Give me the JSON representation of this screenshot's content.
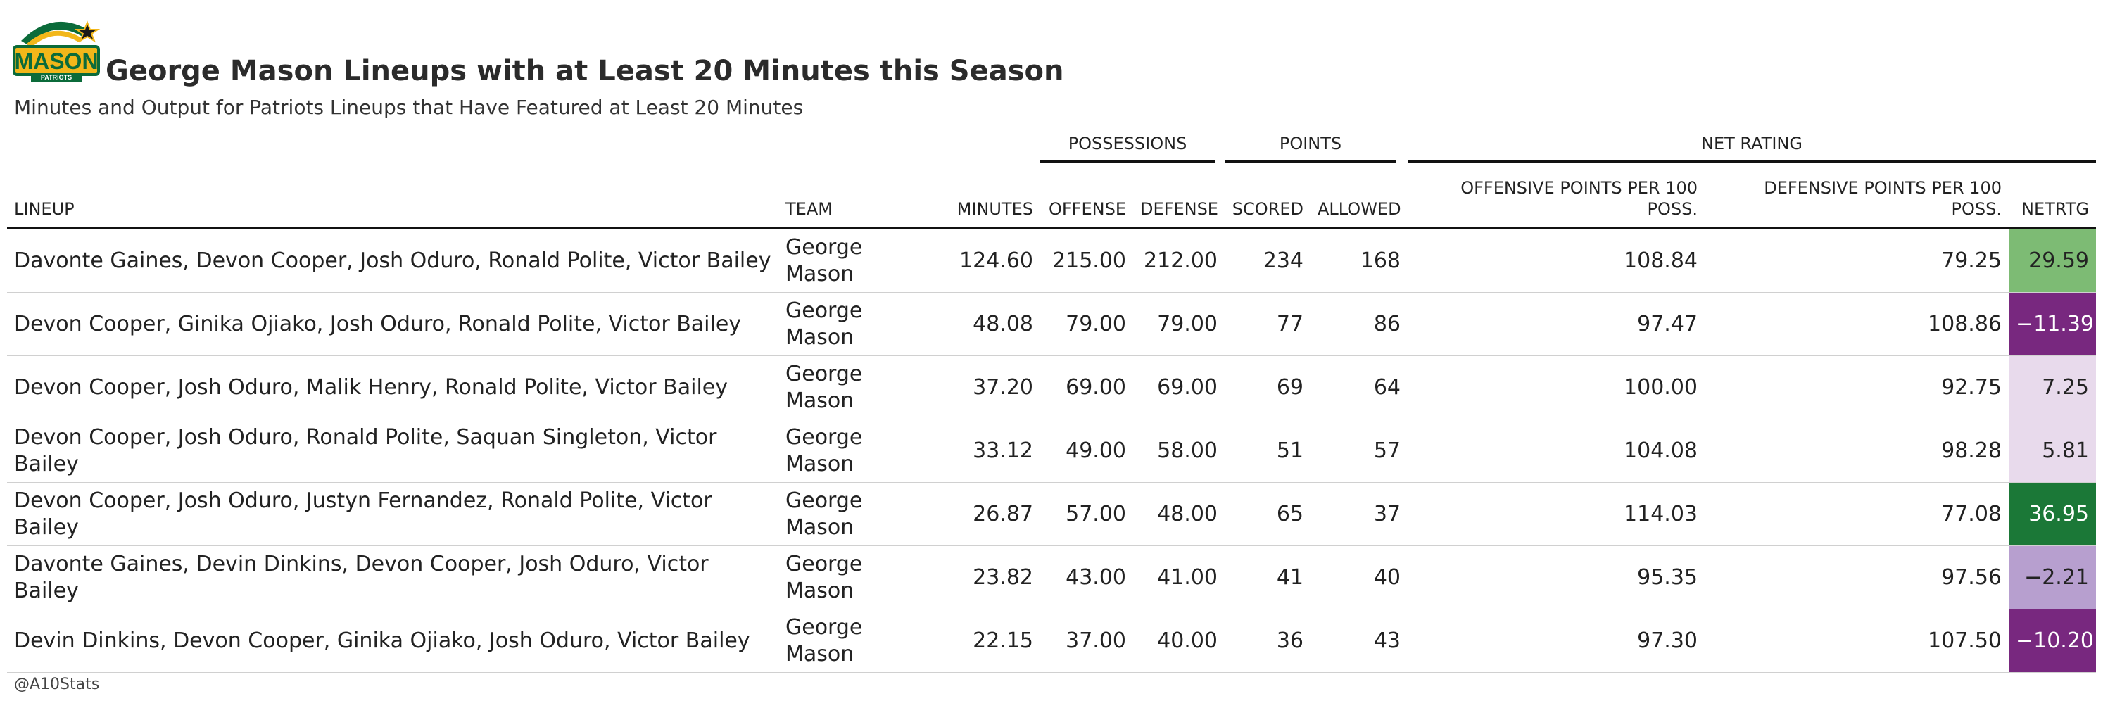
{
  "header": {
    "title": "George Mason Lineups with at Least 20 Minutes this Season",
    "subtitle": "Minutes and Output for Patriots Lineups that Have Featured at Least 20 Minutes",
    "logo_text": "MASON",
    "logo_subtext": "PATRIOTS"
  },
  "colors": {
    "logo_green": "#0b6b3a",
    "logo_gold": "#f2b71a",
    "net_colors": [
      "#7dbb74",
      "#78287f",
      "#e8daec",
      "#e8daec",
      "#1b7837",
      "#b79fcf",
      "#78287f"
    ],
    "net_text_colors": [
      "#222222",
      "#ffffff",
      "#222222",
      "#222222",
      "#ffffff",
      "#222222",
      "#ffffff"
    ]
  },
  "spanners": {
    "possessions": "POSSESSIONS",
    "points": "POINTS",
    "net_rating": "NET RATING"
  },
  "columns": {
    "lineup": "LINEUP",
    "team": "TEAM",
    "minutes": "MINUTES",
    "offense": "OFFENSE",
    "defense": "DEFENSE",
    "scored": "SCORED",
    "allowed": "ALLOWED",
    "ortg": "OFFENSIVE POINTS PER 100 POSS.",
    "drtg": "DEFENSIVE POINTS PER 100 POSS.",
    "netrtg": "NETRTG"
  },
  "chart_data": {
    "type": "table",
    "title": "George Mason Lineups with at Least 20 Minutes this Season",
    "subtitle": "Minutes and Output for Patriots Lineups that Have Featured at Least 20 Minutes",
    "rows": [
      {
        "lineup": "Davonte Gaines, Devon Cooper, Josh Oduro, Ronald Polite, Victor Bailey",
        "team": "George Mason",
        "minutes": "124.60",
        "offense": "215.00",
        "defense": "212.00",
        "scored": "234",
        "allowed": "168",
        "ortg": "108.84",
        "drtg": "79.25",
        "netrtg": "29.59"
      },
      {
        "lineup": "Devon Cooper, Ginika Ojiako, Josh Oduro, Ronald Polite, Victor Bailey",
        "team": "George Mason",
        "minutes": "48.08",
        "offense": "79.00",
        "defense": "79.00",
        "scored": "77",
        "allowed": "86",
        "ortg": "97.47",
        "drtg": "108.86",
        "netrtg": "−11.39"
      },
      {
        "lineup": "Devon Cooper, Josh Oduro, Malik Henry, Ronald Polite, Victor Bailey",
        "team": "George Mason",
        "minutes": "37.20",
        "offense": "69.00",
        "defense": "69.00",
        "scored": "69",
        "allowed": "64",
        "ortg": "100.00",
        "drtg": "92.75",
        "netrtg": "7.25"
      },
      {
        "lineup": "Devon Cooper, Josh Oduro, Ronald Polite, Saquan Singleton, Victor Bailey",
        "team": "George Mason",
        "minutes": "33.12",
        "offense": "49.00",
        "defense": "58.00",
        "scored": "51",
        "allowed": "57",
        "ortg": "104.08",
        "drtg": "98.28",
        "netrtg": "5.81"
      },
      {
        "lineup": "Devon Cooper, Josh Oduro, Justyn Fernandez, Ronald Polite, Victor Bailey",
        "team": "George Mason",
        "minutes": "26.87",
        "offense": "57.00",
        "defense": "48.00",
        "scored": "65",
        "allowed": "37",
        "ortg": "114.03",
        "drtg": "77.08",
        "netrtg": "36.95"
      },
      {
        "lineup": "Davonte Gaines, Devin Dinkins, Devon Cooper, Josh Oduro, Victor Bailey",
        "team": "George Mason",
        "minutes": "23.82",
        "offense": "43.00",
        "defense": "41.00",
        "scored": "41",
        "allowed": "40",
        "ortg": "95.35",
        "drtg": "97.56",
        "netrtg": "−2.21"
      },
      {
        "lineup": "Devin Dinkins, Devon Cooper, Ginika Ojiako, Josh Oduro, Victor Bailey",
        "team": "George Mason",
        "minutes": "22.15",
        "offense": "37.00",
        "defense": "40.00",
        "scored": "36",
        "allowed": "43",
        "ortg": "97.30",
        "drtg": "107.50",
        "netrtg": "−10.20"
      }
    ]
  },
  "footer": {
    "source": "@A10Stats"
  }
}
